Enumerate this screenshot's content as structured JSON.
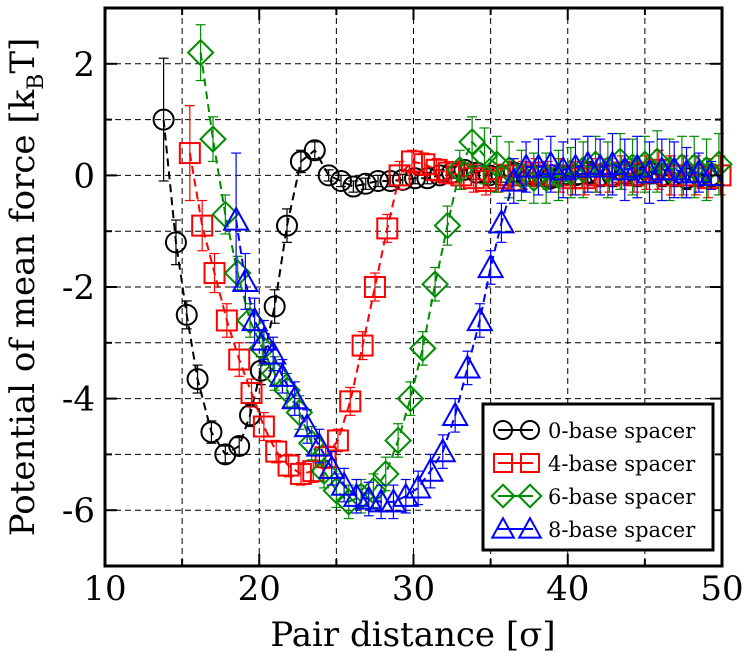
{
  "chart_data": {
    "type": "line",
    "title": "",
    "xlabel": "Pair distance [σ]",
    "ylabel_main": "Potential of mean force [k",
    "ylabel_sub": "B",
    "ylabel_tail": "T]",
    "xlim": [
      10,
      50
    ],
    "ylim": [
      -7,
      3
    ],
    "x_ticks": [
      10,
      20,
      30,
      40,
      50
    ],
    "x_tick_labels": [
      "10",
      "20",
      "30",
      "40",
      "50"
    ],
    "y_ticks": [
      -6,
      -4,
      -2,
      0,
      2
    ],
    "y_tick_labels": [
      "-6",
      "-4",
      "-2",
      "0",
      "2"
    ],
    "grid": true,
    "legend_position": "bottom-right",
    "series": [
      {
        "name": "0-base spacer",
        "color": "#000000",
        "marker": "circle",
        "x": [
          13.8,
          14.6,
          15.3,
          16.0,
          16.9,
          17.8,
          18.7,
          19.4,
          20.1,
          21.0,
          21.8,
          22.7,
          23.6,
          24.5,
          25.3,
          26.1,
          26.9,
          27.7,
          28.5,
          29.3,
          30.1,
          30.9,
          31.7,
          32.5,
          33.3,
          34.1,
          34.9,
          35.7,
          36.5,
          37.3,
          38.1,
          38.9,
          39.7,
          40.5,
          41.3,
          42.1,
          42.9,
          43.7,
          44.5,
          45.3,
          46.1,
          46.9,
          47.7,
          48.5,
          49.3
        ],
        "y": [
          1.0,
          -1.2,
          -2.5,
          -3.65,
          -4.6,
          -5.0,
          -4.85,
          -4.3,
          -3.5,
          -2.35,
          -0.9,
          0.25,
          0.45,
          0.0,
          -0.1,
          -0.2,
          -0.15,
          -0.1,
          -0.1,
          -0.08,
          -0.05,
          -0.05,
          0.0,
          0.05,
          0.1,
          0.05,
          0.0,
          0.0,
          0.05,
          0.0,
          0.0,
          -0.05,
          0.0,
          0.0,
          0.05,
          0.0,
          0.0,
          0.05,
          0.0,
          0.05,
          0.0,
          0.0,
          -0.05,
          0.0,
          0.0
        ],
        "err": [
          1.1,
          0.4,
          0.25,
          0.25,
          0.2,
          0.15,
          0.15,
          0.2,
          0.25,
          0.3,
          0.3,
          0.2,
          0.15,
          0.1,
          0.1,
          0.1,
          0.1,
          0.1,
          0.1,
          0.1,
          0.1,
          0.1,
          0.1,
          0.1,
          0.12,
          0.12,
          0.12,
          0.12,
          0.15,
          0.15,
          0.15,
          0.15,
          0.15,
          0.15,
          0.2,
          0.2,
          0.2,
          0.2,
          0.2,
          0.2,
          0.2,
          0.2,
          0.2,
          0.2,
          0.2
        ]
      },
      {
        "name": "4-base spacer",
        "color": "#ff0000",
        "marker": "square",
        "x": [
          15.5,
          16.3,
          17.1,
          17.9,
          18.7,
          19.5,
          20.3,
          21.1,
          21.9,
          22.7,
          23.5,
          24.3,
          25.1,
          25.9,
          26.7,
          27.5,
          28.3,
          29.1,
          29.9,
          30.7,
          31.5,
          32.3,
          33.1,
          33.9,
          34.7,
          35.5,
          36.3,
          37.1,
          37.9,
          38.7,
          39.5,
          40.3,
          41.1,
          41.9,
          42.7,
          43.5,
          44.3,
          45.1,
          45.9,
          46.7,
          47.5,
          48.3,
          49.1,
          49.9
        ],
        "y": [
          0.4,
          -0.9,
          -1.75,
          -2.6,
          -3.3,
          -3.9,
          -4.5,
          -4.95,
          -5.2,
          -5.35,
          -5.3,
          -5.05,
          -4.75,
          -4.05,
          -3.05,
          -2.0,
          -0.95,
          0.0,
          0.25,
          0.2,
          0.1,
          0.05,
          0.0,
          -0.05,
          -0.1,
          -0.05,
          0.0,
          0.0,
          0.05,
          0.0,
          0.0,
          -0.05,
          -0.05,
          0.0,
          0.0,
          0.05,
          0.0,
          0.05,
          0.1,
          0.0,
          0.0,
          0.0,
          -0.05,
          0.0
        ],
        "err": [
          0.85,
          0.45,
          0.35,
          0.3,
          0.3,
          0.25,
          0.25,
          0.2,
          0.2,
          0.2,
          0.2,
          0.2,
          0.2,
          0.25,
          0.25,
          0.25,
          0.25,
          0.25,
          0.2,
          0.2,
          0.2,
          0.2,
          0.25,
          0.25,
          0.25,
          0.25,
          0.25,
          0.25,
          0.25,
          0.25,
          0.3,
          0.3,
          0.3,
          0.3,
          0.3,
          0.3,
          0.3,
          0.3,
          0.35,
          0.35,
          0.35,
          0.35,
          0.35,
          0.35
        ]
      },
      {
        "name": "6-base spacer",
        "color": "#008c00",
        "marker": "diamond",
        "x": [
          16.2,
          17.0,
          17.8,
          18.6,
          19.4,
          20.2,
          21.0,
          21.8,
          22.6,
          23.4,
          24.2,
          25.0,
          25.8,
          26.6,
          27.4,
          28.2,
          29.0,
          29.8,
          30.6,
          31.4,
          32.2,
          33.0,
          33.8,
          34.6,
          35.4,
          36.2,
          37.0,
          37.8,
          38.6,
          39.4,
          40.2,
          41.0,
          41.8,
          42.6,
          43.4,
          44.2,
          45.0,
          45.8,
          46.6,
          47.4,
          48.2,
          49.0,
          49.8
        ],
        "y": [
          2.2,
          0.65,
          -0.7,
          -1.75,
          -2.6,
          -3.1,
          -3.55,
          -3.85,
          -4.25,
          -4.8,
          -5.3,
          -5.65,
          -5.85,
          -5.75,
          -5.65,
          -5.35,
          -4.75,
          -4.0,
          -3.1,
          -1.95,
          -0.9,
          0.1,
          0.6,
          0.35,
          0.2,
          0.1,
          0.0,
          -0.05,
          -0.05,
          0.0,
          0.05,
          0.1,
          0.2,
          0.1,
          0.25,
          0.15,
          0.2,
          0.25,
          0.1,
          0.15,
          0.15,
          0.1,
          0.2
        ],
        "err": [
          0.5,
          0.4,
          0.35,
          0.3,
          0.3,
          0.3,
          0.3,
          0.3,
          0.3,
          0.3,
          0.3,
          0.3,
          0.3,
          0.3,
          0.3,
          0.3,
          0.3,
          0.3,
          0.3,
          0.3,
          0.35,
          0.35,
          0.45,
          0.5,
          0.5,
          0.5,
          0.45,
          0.45,
          0.45,
          0.45,
          0.45,
          0.5,
          0.5,
          0.5,
          0.5,
          0.5,
          0.5,
          0.55,
          0.55,
          0.55,
          0.55,
          0.55,
          0.55
        ]
      },
      {
        "name": "8-base spacer",
        "color": "#0000ff",
        "marker": "triangle",
        "x": [
          18.5,
          19.1,
          19.7,
          20.3,
          20.9,
          21.5,
          22.3,
          23.1,
          23.9,
          24.7,
          25.5,
          26.3,
          27.1,
          27.9,
          28.7,
          29.5,
          30.3,
          31.1,
          31.9,
          32.7,
          33.5,
          34.3,
          35.0,
          35.7,
          36.5,
          37.3,
          38.1,
          38.9,
          39.7,
          40.5,
          41.3,
          42.1,
          42.9,
          43.7,
          44.5,
          45.3,
          46.1,
          46.9,
          47.7,
          48.5,
          49.3
        ],
        "y": [
          -0.8,
          -1.9,
          -2.6,
          -2.95,
          -3.2,
          -3.6,
          -4.0,
          -4.5,
          -4.85,
          -5.25,
          -5.55,
          -5.75,
          -5.8,
          -5.85,
          -5.85,
          -5.75,
          -5.6,
          -5.3,
          -4.95,
          -4.3,
          -3.45,
          -2.6,
          -1.65,
          -0.85,
          -0.1,
          0.15,
          0.15,
          0.2,
          0.1,
          0.15,
          0.2,
          0.15,
          0.2,
          0.1,
          0.15,
          0.05,
          0.1,
          0.1,
          0.05,
          0.05,
          0.0
        ],
        "err": [
          1.2,
          0.5,
          0.4,
          0.35,
          0.3,
          0.3,
          0.3,
          0.3,
          0.3,
          0.3,
          0.3,
          0.3,
          0.3,
          0.3,
          0.3,
          0.3,
          0.3,
          0.3,
          0.3,
          0.3,
          0.3,
          0.3,
          0.3,
          0.35,
          0.4,
          0.45,
          0.5,
          0.5,
          0.5,
          0.5,
          0.5,
          0.5,
          0.55,
          0.55,
          0.55,
          0.55,
          0.55,
          0.5,
          0.45,
          0.35,
          0.25
        ]
      }
    ]
  }
}
